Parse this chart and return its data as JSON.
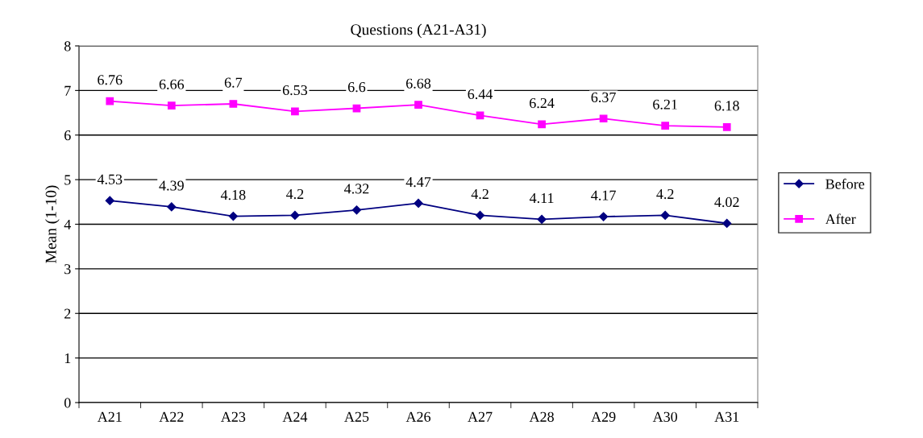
{
  "chart_data": {
    "type": "line",
    "title": "Questions (A21-A31)",
    "ylabel": "Mean (1-10)",
    "categories": [
      "A21",
      "A22",
      "A23",
      "A24",
      "A25",
      "A26",
      "A27",
      "A28",
      "A29",
      "A30",
      "A31"
    ],
    "series": [
      {
        "name": "Before",
        "color": "#000080",
        "marker": "diamond",
        "values": [
          4.53,
          4.39,
          4.18,
          4.2,
          4.32,
          4.47,
          4.2,
          4.11,
          4.17,
          4.2,
          4.02
        ]
      },
      {
        "name": "After",
        "color": "#ff00ff",
        "marker": "square",
        "values": [
          6.76,
          6.66,
          6.7,
          6.53,
          6.6,
          6.68,
          6.44,
          6.24,
          6.37,
          6.21,
          6.18
        ]
      }
    ],
    "ylim": [
      0,
      8
    ],
    "yticks": [
      0,
      1,
      2,
      3,
      4,
      5,
      6,
      7,
      8
    ],
    "grid": "y",
    "legend": "right",
    "data_labels": true,
    "line_style": "solid"
  }
}
